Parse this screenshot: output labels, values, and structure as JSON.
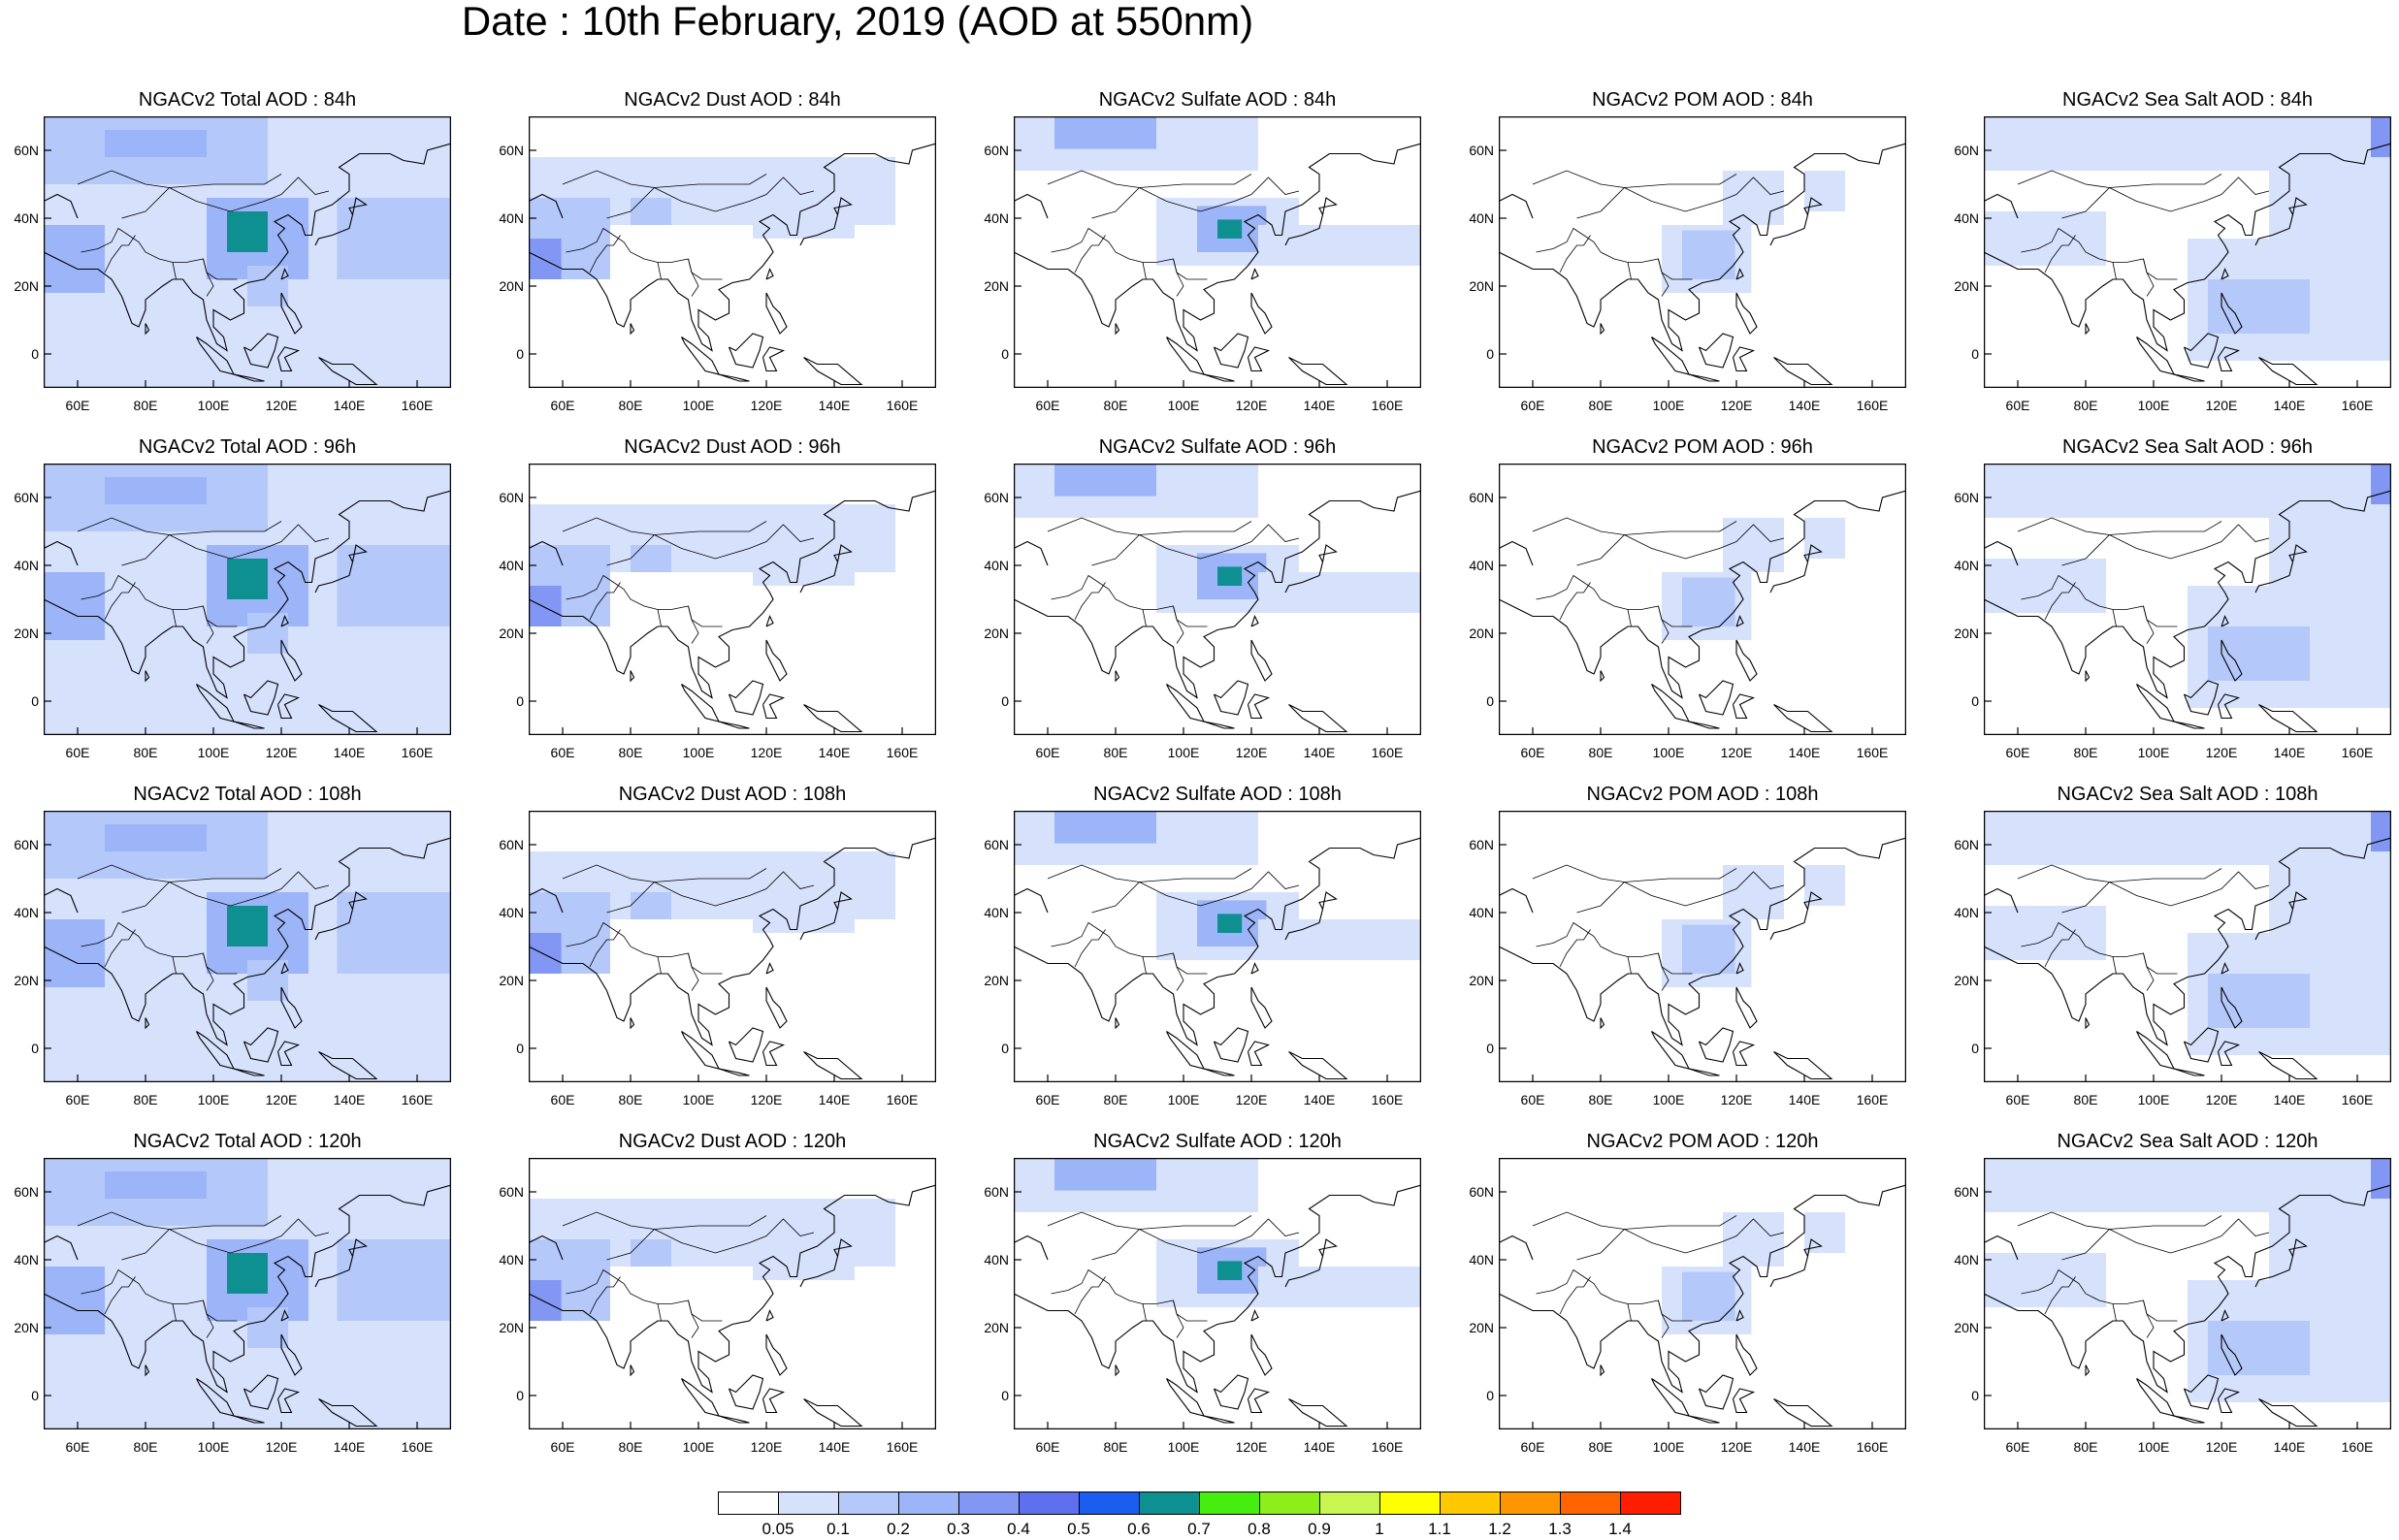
{
  "title": "Date : 10th February, 2019 (AOD at 550nm)",
  "x_ticks": [
    "60E",
    "80E",
    "100E",
    "120E",
    "140E",
    "160E"
  ],
  "y_ticks": [
    "60N",
    "40N",
    "20N",
    "0"
  ],
  "panels": [
    [
      "NGACv2 Total AOD : 84h",
      "NGACv2 Dust AOD : 84h",
      "NGACv2 Sulfate AOD : 84h",
      "NGACv2 POM AOD : 84h",
      "NGACv2 Sea Salt AOD : 84h"
    ],
    [
      "NGACv2 Total AOD : 96h",
      "NGACv2 Dust AOD : 96h",
      "NGACv2 Sulfate AOD : 96h",
      "NGACv2 POM AOD : 96h",
      "NGACv2 Sea Salt AOD : 96h"
    ],
    [
      "NGACv2 Total AOD : 108h",
      "NGACv2 Dust AOD : 108h",
      "NGACv2 Sulfate AOD : 108h",
      "NGACv2 POM AOD : 108h",
      "NGACv2 Sea Salt AOD : 108h"
    ],
    [
      "NGACv2 Total AOD : 120h",
      "NGACv2 Dust AOD : 120h",
      "NGACv2 Sulfate AOD : 120h",
      "NGACv2 POM AOD : 120h",
      "NGACv2 Sea Salt  AOD : 120h"
    ]
  ],
  "colorbar": {
    "labels": [
      "0.05",
      "0.1",
      "0.2",
      "0.3",
      "0.4",
      "0.5",
      "0.6",
      "0.7",
      "0.8",
      "0.9",
      "1",
      "1.1",
      "1.2",
      "1.3",
      "1.4"
    ],
    "colors": [
      "#ffffff",
      "#d6e1fc",
      "#b4c8fa",
      "#9cb4f8",
      "#8296f4",
      "#5e6ff0",
      "#1a5ef0",
      "#0f9090",
      "#46ee10",
      "#8cef1a",
      "#c8f550",
      "#ffff00",
      "#ffc800",
      "#ff9600",
      "#ff6400",
      "#ff1e00"
    ]
  },
  "map_extent": {
    "lon": [
      50,
      170
    ],
    "lat": [
      -10,
      70
    ]
  }
}
